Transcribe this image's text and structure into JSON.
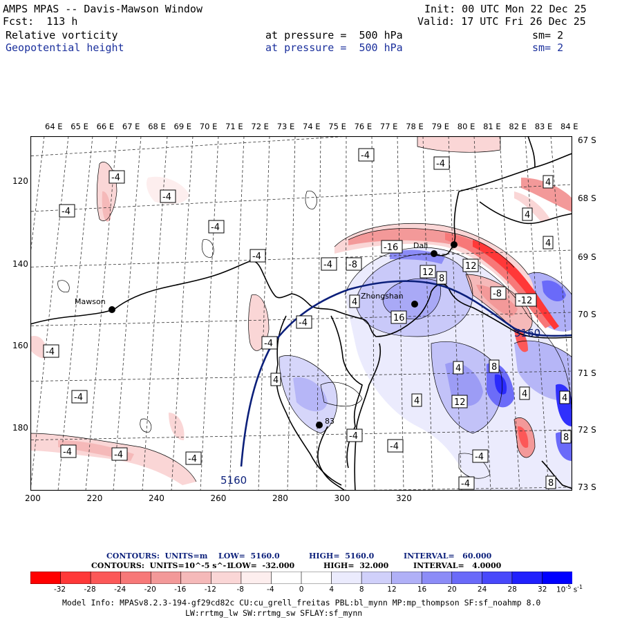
{
  "header": {
    "title": "AMPS MPAS -- Davis-Mawson Window",
    "fcst": "Fcst:  113 h",
    "init": "Init: 00 UTC Mon 22 Dec 25",
    "valid": "Valid: 17 UTC Fri 26 Dec 25",
    "field1": {
      "name": "Relative vorticity",
      "level": "at pressure =  500 hPa",
      "sm": "sm= 2"
    },
    "field2": {
      "name": "Geopotential height",
      "level": "at pressure =  500 hPa",
      "sm": "sm= 2"
    }
  },
  "map": {
    "lon_labels": [
      "64 E",
      "65 E",
      "66 E",
      "67 E",
      "68 E",
      "69 E",
      "70 E",
      "71 E",
      "72 E",
      "73 E",
      "74 E",
      "75 E",
      "76 E",
      "77 E",
      "78 E",
      "79 E",
      "80 E",
      "81 E",
      "82 E",
      "83 E",
      "84 E"
    ],
    "lat_labels": [
      "67 S",
      "68 S",
      "69 S",
      "70 S",
      "71 S",
      "72 S",
      "73 S"
    ],
    "y_ticks": [
      "120",
      "140",
      "160",
      "180"
    ],
    "x_ticks": [
      "200",
      "220",
      "240",
      "260",
      "280",
      "300",
      "320"
    ],
    "stations": [
      {
        "name": "Mawson",
        "x": 118,
        "y": 251
      },
      {
        "name": "Zhongshan",
        "x": 556,
        "y": 243
      },
      {
        "name": "Dali",
        "x": 584,
        "y": 170
      },
      {
        "name": "",
        "x": 613,
        "y": 157
      },
      {
        "name": "",
        "x": 418,
        "y": 418
      }
    ],
    "station_extra_label": "83",
    "contour_line_label": "5160",
    "contour_line_label2": "5160",
    "labels_neg": [
      "-4",
      "-4",
      "-4",
      "-4",
      "-4",
      "-4",
      "-4",
      "-4",
      "-4",
      "-4",
      "-4",
      "-4",
      "-4",
      "-4",
      "-4",
      "-4",
      "-4",
      "-4",
      "-4",
      "-8",
      "-8",
      "-12",
      "-16"
    ],
    "labels_pos": [
      "4",
      "4",
      "4",
      "4",
      "4",
      "8",
      "8",
      "8",
      "12",
      "12",
      "12",
      "16",
      "4",
      "4",
      "8",
      "4",
      "4"
    ]
  },
  "contours_info": {
    "line1": {
      "label": "CONTOURS:  UNITS=m",
      "low": "LOW=  5160.0",
      "high": "HIGH=  5160.0",
      "interval": "INTERVAL=   60.000"
    },
    "line2": {
      "label": "CONTOURS:  UNITS=10^-5 s^-1",
      "low": "LOW=  -32.000",
      "high": "HIGH=  32.000",
      "interval": "INTERVAL=   4.0000"
    }
  },
  "colorbar": {
    "ticks": [
      "-32",
      "-28",
      "-24",
      "-20",
      "-16",
      "-12",
      "-8",
      "-4",
      "0",
      "4",
      "8",
      "12",
      "16",
      "20",
      "24",
      "28",
      "32"
    ],
    "units": "10^-5 s^-1",
    "colors": [
      "#ff0000",
      "#ff3838",
      "#fc5858",
      "#f77878",
      "#f39999",
      "#f5b9b9",
      "#fad6d6",
      "#fdeeee",
      "#ffffff",
      "#ffffff",
      "#ebebfd",
      "#d0d0fa",
      "#b0b0f7",
      "#8c8cf7",
      "#6a6af9",
      "#4848fb",
      "#2020fd",
      "#0000ff"
    ]
  },
  "footer": {
    "line1": "Model Info: MPASv8.2.3-194-gf29cd82c CU:cu_grell_freitas PBL:bl_mynn MP:mp_thompson SF:sf_noahmp 8.0",
    "line2": "LW:rrtmg_lw SW:rrtmg_sw SFLAY:sf_mynn"
  }
}
